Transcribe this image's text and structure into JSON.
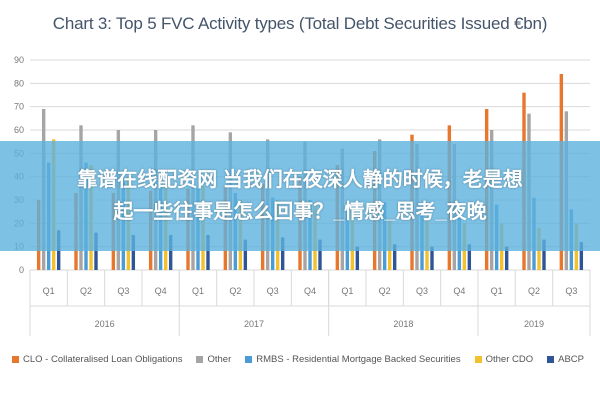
{
  "chart_data": {
    "type": "bar",
    "title": "Chart 3: Top 5 FVC Activity types (Total Debt Securities Issued €bn)",
    "xlabel": "",
    "ylabel": "",
    "ylim": [
      0,
      90
    ],
    "yticks": [
      0,
      10,
      20,
      30,
      40,
      50,
      60,
      70,
      80,
      90
    ],
    "grid": true,
    "legend_position": "bottom",
    "categories": [
      "Q1",
      "Q2",
      "Q3",
      "Q4",
      "Q1",
      "Q2",
      "Q3",
      "Q4",
      "Q1",
      "Q2",
      "Q3",
      "Q4",
      "Q1",
      "Q2",
      "Q3"
    ],
    "groups": [
      {
        "label": "2016",
        "span": 4
      },
      {
        "label": "2017",
        "span": 4
      },
      {
        "label": "2018",
        "span": 4
      },
      {
        "label": "2019",
        "span": 3
      }
    ],
    "series": [
      {
        "name": "CLO - Collateralised Loan Obligations",
        "color": "#e8772e",
        "values": [
          30,
          33,
          33,
          34,
          35,
          36,
          37,
          40,
          45,
          51,
          58,
          62,
          69,
          76,
          84
        ]
      },
      {
        "name": "Other",
        "color": "#a5a5a5",
        "values": [
          69,
          62,
          60,
          60,
          62,
          59,
          56,
          55,
          52,
          56,
          54,
          54,
          60,
          67,
          68
        ]
      },
      {
        "name": "RMBS - Residential Mortgage Backed Securities",
        "color": "#4a9bd6",
        "values": [
          46,
          46,
          38,
          36,
          35,
          33,
          31,
          30,
          28,
          29,
          27,
          27,
          28,
          31,
          26
        ]
      },
      {
        "name": "Other CDO",
        "color": "#f2c12e",
        "values": [
          56,
          45,
          40,
          36,
          36,
          30,
          30,
          29,
          26,
          21,
          21,
          20,
          20,
          18,
          20
        ]
      },
      {
        "name": "ABCP",
        "color": "#2f5597",
        "values": [
          17,
          16,
          15,
          15,
          15,
          13,
          14,
          13,
          10,
          11,
          10,
          11,
          10,
          13,
          12
        ]
      }
    ]
  },
  "overlay": {
    "line1": "靠谱在线配资网 当我们在夜深人静的时候，老是想",
    "line2": "起一些往事是怎么回事？_情感_思考_夜晚"
  }
}
